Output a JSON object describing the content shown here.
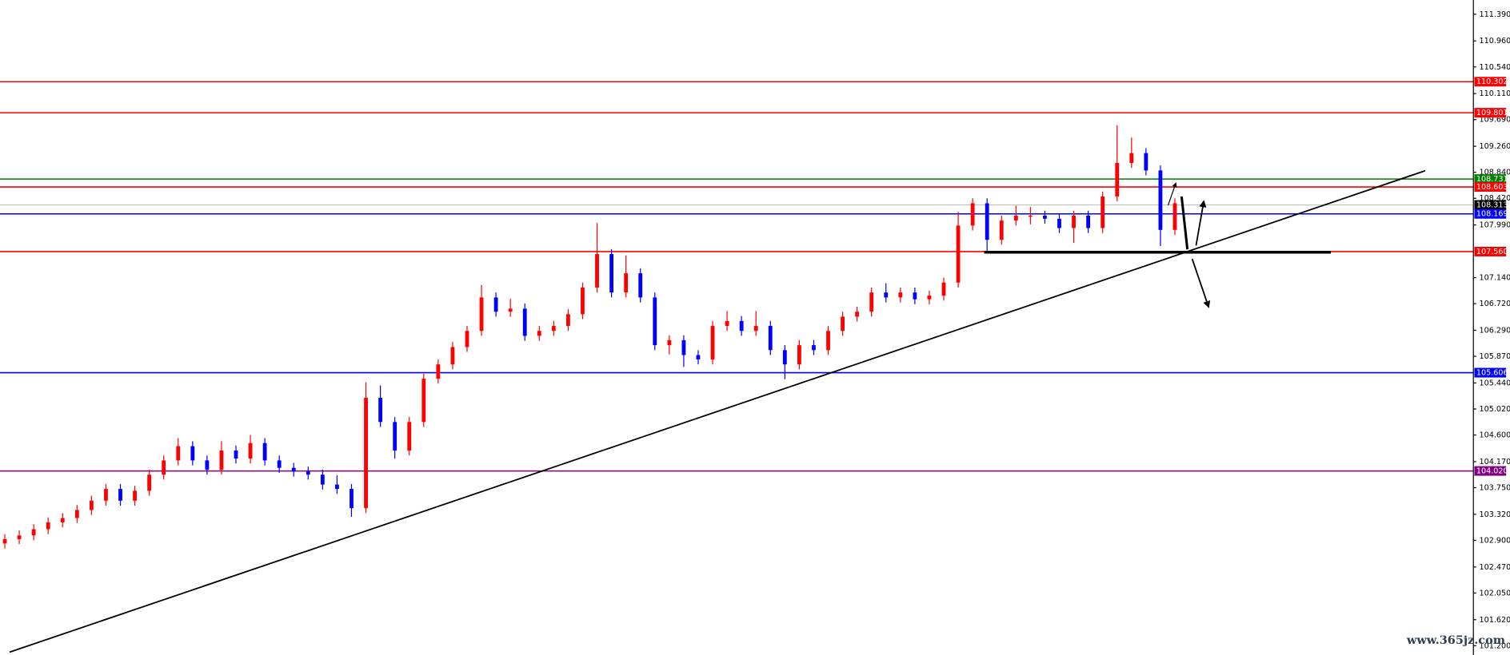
{
  "chart_data": {
    "type": "candlestick",
    "up_color": "#ff0000",
    "down_color": "#0000ff",
    "ylim": [
      101.05,
      111.62
    ],
    "yticks": [
      {
        "value": 111.39,
        "label": "111.390"
      },
      {
        "value": 110.96,
        "label": "110.960"
      },
      {
        "value": 110.54,
        "label": "110.540"
      },
      {
        "value": 110.11,
        "label": "110.110"
      },
      {
        "value": 109.69,
        "label": "109.690"
      },
      {
        "value": 109.26,
        "label": "109.260"
      },
      {
        "value": 108.84,
        "label": "108.840"
      },
      {
        "value": 108.42,
        "label": "108.420"
      },
      {
        "value": 107.99,
        "label": "107.990"
      },
      {
        "value": 107.14,
        "label": "107.140"
      },
      {
        "value": 106.72,
        "label": "106.720"
      },
      {
        "value": 106.29,
        "label": "106.290"
      },
      {
        "value": 105.87,
        "label": "105.870"
      },
      {
        "value": 105.44,
        "label": "105.440"
      },
      {
        "value": 105.02,
        "label": "105.020"
      },
      {
        "value": 104.6,
        "label": "104.600"
      },
      {
        "value": 104.17,
        "label": "104.170"
      },
      {
        "value": 103.75,
        "label": "103.750"
      },
      {
        "value": 103.32,
        "label": "103.320"
      },
      {
        "value": 102.9,
        "label": "102.900"
      },
      {
        "value": 102.47,
        "label": "102.470"
      },
      {
        "value": 102.05,
        "label": "102.050"
      },
      {
        "value": 101.62,
        "label": "101.620"
      },
      {
        "value": 101.2,
        "label": "101.200"
      }
    ],
    "levels": [
      {
        "value": 110.302,
        "label": "110.302",
        "color": "#ff0000"
      },
      {
        "value": 109.801,
        "label": "109.801",
        "color": "#ff0000"
      },
      {
        "value": 108.731,
        "label": "108.731",
        "color": "#008000"
      },
      {
        "value": 108.603,
        "label": "108.603",
        "color": "#ff0000"
      },
      {
        "value": 108.313,
        "label": "108.313",
        "color": "#000000"
      },
      {
        "value": 108.169,
        "label": "108.169",
        "color": "#0000ff"
      },
      {
        "value": 107.56,
        "label": "107.560",
        "color": "#ff0000"
      },
      {
        "value": 105.606,
        "label": "105.606",
        "color": "#0000ff"
      },
      {
        "value": 104.02,
        "label": "104.020",
        "color": "#800080"
      }
    ],
    "ohlc": [
      [
        102.85,
        103.0,
        102.77,
        102.92
      ],
      [
        102.92,
        103.06,
        102.84,
        102.98
      ],
      [
        102.98,
        103.16,
        102.9,
        103.08
      ],
      [
        103.08,
        103.27,
        103.0,
        103.19
      ],
      [
        103.19,
        103.34,
        103.11,
        103.26
      ],
      [
        103.26,
        103.47,
        103.18,
        103.39
      ],
      [
        103.39,
        103.62,
        103.31,
        103.54
      ],
      [
        103.54,
        103.81,
        103.46,
        103.73
      ],
      [
        103.73,
        103.81,
        103.46,
        103.54
      ],
      [
        103.54,
        103.78,
        103.46,
        103.7
      ],
      [
        103.7,
        104.04,
        103.62,
        103.96
      ],
      [
        103.96,
        104.27,
        103.88,
        104.19
      ],
      [
        104.19,
        104.55,
        104.11,
        104.42
      ],
      [
        104.42,
        104.5,
        104.11,
        104.19
      ],
      [
        104.19,
        104.27,
        103.96,
        104.04
      ],
      [
        104.04,
        104.5,
        103.96,
        104.35
      ],
      [
        104.35,
        104.43,
        104.14,
        104.22
      ],
      [
        104.22,
        104.6,
        104.14,
        104.47
      ],
      [
        104.47,
        104.55,
        104.11,
        104.19
      ],
      [
        104.19,
        104.27,
        103.99,
        104.07
      ],
      [
        104.07,
        104.15,
        103.93,
        104.01
      ],
      [
        104.01,
        104.09,
        103.88,
        103.96
      ],
      [
        103.96,
        104.04,
        103.72,
        103.8
      ],
      [
        103.8,
        103.95,
        103.65,
        103.73
      ],
      [
        103.73,
        103.81,
        103.28,
        103.42
      ],
      [
        103.42,
        105.45,
        103.34,
        105.2
      ],
      [
        105.2,
        105.4,
        104.73,
        104.81
      ],
      [
        104.81,
        104.89,
        104.22,
        104.35
      ],
      [
        104.35,
        104.89,
        104.27,
        104.81
      ],
      [
        104.81,
        105.59,
        104.73,
        105.51
      ],
      [
        105.51,
        105.82,
        105.43,
        105.74
      ],
      [
        105.74,
        106.1,
        105.66,
        106.02
      ],
      [
        106.02,
        106.36,
        105.94,
        106.28
      ],
      [
        106.28,
        107.02,
        106.2,
        106.82
      ],
      [
        106.82,
        106.9,
        106.51,
        106.59
      ],
      [
        106.59,
        106.8,
        106.51,
        106.64
      ],
      [
        106.64,
        106.72,
        106.12,
        106.2
      ],
      [
        106.2,
        106.36,
        106.12,
        106.28
      ],
      [
        106.28,
        106.44,
        106.2,
        106.36
      ],
      [
        106.36,
        106.63,
        106.28,
        106.55
      ],
      [
        106.55,
        107.06,
        106.47,
        106.98
      ],
      [
        106.98,
        108.02,
        106.9,
        107.52
      ],
      [
        107.52,
        107.6,
        106.82,
        106.9
      ],
      [
        106.9,
        107.5,
        106.82,
        107.21
      ],
      [
        107.21,
        107.29,
        106.74,
        106.82
      ],
      [
        106.82,
        106.9,
        105.97,
        106.05
      ],
      [
        106.05,
        106.21,
        105.9,
        106.13
      ],
      [
        106.13,
        106.21,
        105.7,
        105.89
      ],
      [
        105.89,
        105.97,
        105.74,
        105.82
      ],
      [
        105.82,
        106.44,
        105.74,
        106.36
      ],
      [
        106.36,
        106.6,
        106.28,
        106.44
      ],
      [
        106.44,
        106.52,
        106.2,
        106.28
      ],
      [
        106.28,
        106.6,
        106.2,
        106.36
      ],
      [
        106.36,
        106.44,
        105.89,
        105.97
      ],
      [
        105.97,
        106.05,
        105.5,
        105.74
      ],
      [
        105.74,
        106.13,
        105.66,
        106.05
      ],
      [
        106.05,
        106.13,
        105.89,
        105.97
      ],
      [
        105.97,
        106.36,
        105.89,
        106.28
      ],
      [
        106.28,
        106.59,
        106.2,
        106.51
      ],
      [
        106.51,
        106.67,
        106.43,
        106.59
      ],
      [
        106.59,
        106.98,
        106.51,
        106.9
      ],
      [
        106.9,
        107.05,
        106.74,
        106.82
      ],
      [
        106.82,
        106.98,
        106.74,
        106.9
      ],
      [
        106.9,
        106.98,
        106.71,
        106.79
      ],
      [
        106.79,
        106.93,
        106.71,
        106.85
      ],
      [
        106.85,
        107.14,
        106.77,
        107.06
      ],
      [
        107.06,
        108.2,
        106.98,
        107.98
      ],
      [
        107.98,
        108.42,
        107.9,
        108.34
      ],
      [
        108.34,
        108.42,
        107.56,
        107.75
      ],
      [
        107.75,
        108.14,
        107.67,
        108.06
      ],
      [
        108.06,
        108.3,
        107.98,
        108.14
      ],
      [
        108.14,
        108.28,
        108.0,
        108.14
      ],
      [
        108.14,
        108.22,
        108.01,
        108.09
      ],
      [
        108.09,
        108.17,
        107.86,
        107.94
      ],
      [
        107.94,
        108.22,
        107.7,
        108.14
      ],
      [
        108.14,
        108.22,
        107.86,
        107.94
      ],
      [
        107.94,
        108.53,
        107.86,
        108.45
      ],
      [
        108.45,
        109.6,
        108.37,
        108.99
      ],
      [
        108.99,
        109.4,
        108.91,
        109.15
      ],
      [
        109.15,
        109.23,
        108.79,
        108.87
      ],
      [
        108.87,
        108.95,
        107.65,
        107.91
      ],
      [
        107.91,
        108.42,
        107.83,
        108.34
      ]
    ],
    "watermark": "www.365jz.com"
  }
}
